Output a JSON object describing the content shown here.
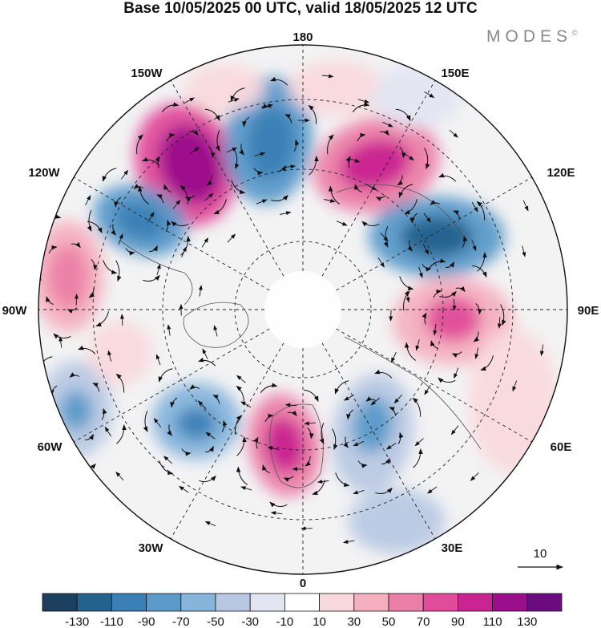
{
  "title": "Base 10/05/2025 00 UTC, valid 18/05/2025 12 UTC",
  "brand": "MODES",
  "brand_mark": "©",
  "longitude_labels": {
    "lon_180": "180",
    "lon_150e": "150E",
    "lon_120e": "120E",
    "lon_90e": "90E",
    "lon_60e": "60E",
    "lon_30e": "30E",
    "lon_0": "0",
    "lon_30w": "30W",
    "lon_60w": "60W",
    "lon_90w": "90W",
    "lon_120w": "120W",
    "lon_150w": "150W"
  },
  "vector_reference": {
    "label": "10"
  },
  "colorbar": {
    "colors": [
      "#1c3f5f",
      "#24628e",
      "#3a7fb5",
      "#5b9ac9",
      "#87b4db",
      "#b8c8e3",
      "#e3e5f2",
      "#ffffff",
      "#f9d9dd",
      "#f4b0bf",
      "#ec7fa7",
      "#e04c9a",
      "#c92491",
      "#9a0f8c",
      "#6a0c80"
    ],
    "tick_labels": [
      "-130",
      "-110",
      "-90",
      "-70",
      "-50",
      "-30",
      "-10",
      "10",
      "30",
      "50",
      "70",
      "90",
      "110",
      "130"
    ]
  }
}
